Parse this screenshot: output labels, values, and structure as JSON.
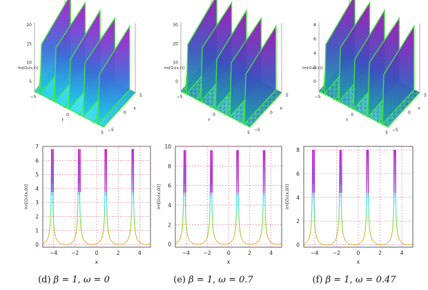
{
  "figure": {
    "panels_3d": [
      {
        "z_label": "Im[O₃(x,t)]",
        "z_ticks": [
          "20",
          "15",
          "10",
          "5"
        ],
        "t_ticks": [
          "−5",
          "0",
          "5"
        ],
        "x_ticks": [
          "−5",
          "0",
          "5"
        ],
        "t_label": "t",
        "x_label": "x",
        "style": "smooth"
      },
      {
        "z_label": "Im[O₃(x,t)]",
        "z_ticks": [
          "30",
          "20",
          "10",
          "0"
        ],
        "t_ticks": [
          "−5",
          "0",
          "5"
        ],
        "x_ticks": [
          "−5",
          "0",
          "5"
        ],
        "t_label": "t",
        "x_label": "x",
        "style": "noisy"
      },
      {
        "z_label": "Im[O₃(x,t)]",
        "z_ticks": [
          "8",
          "6",
          "4",
          "2",
          "0"
        ],
        "t_ticks": [
          "−5",
          "0",
          "5"
        ],
        "x_ticks": [
          "−5",
          "0",
          "5"
        ],
        "t_label": "t",
        "x_label": "x",
        "style": "noisy"
      }
    ],
    "captions": [
      {
        "tag": "(d)",
        "beta": "β = 1,",
        "omega": "ω = 0"
      },
      {
        "tag": "(e)",
        "beta": "β = 1,",
        "omega": "ω = 0.7"
      },
      {
        "tag": "(f)",
        "beta": "β = 1,",
        "omega": "ω = 0.47"
      }
    ]
  },
  "chart_data": [
    {
      "type": "line",
      "title": "(d) β = 1, ω = 0",
      "xlabel": "x",
      "ylabel": "Im[O₃(x,0)]",
      "xlim": [
        -5,
        5
      ],
      "ylim": [
        -0.2,
        7
      ],
      "x_ticks": [
        -4,
        -2,
        0,
        2,
        4
      ],
      "y_ticks": [
        0,
        1,
        2,
        3,
        4,
        5,
        6,
        7
      ],
      "grid": true,
      "peak_centers": [
        -4.1,
        -1.6,
        0.85,
        3.35
      ],
      "peak_height": 6.8,
      "curve": "y = min(6.8, 0.38 / |sin(pi * (x - 0.85) / 2.5)| - 0.38)"
    },
    {
      "type": "line",
      "title": "(e) β = 1, ω = 0.7",
      "xlabel": "x",
      "ylabel": "Im[O₃(x,0)]",
      "xlim": [
        -5,
        5
      ],
      "ylim": [
        -0.3,
        10
      ],
      "x_ticks": [
        -4,
        -2,
        0,
        2,
        4
      ],
      "y_ticks": [
        0,
        2,
        4,
        6,
        8,
        10
      ],
      "grid": true,
      "peak_centers": [
        -4.1,
        -1.6,
        0.85,
        3.35
      ],
      "peak_height": 9.6,
      "curve": "y = min(9.6, 0.54 / |sin(pi * (x - 0.85) / 2.5)| - 0.54)"
    },
    {
      "type": "line",
      "title": "(f) β = 1, ω = 0.47",
      "xlabel": "x",
      "ylabel": "Im[O₃(x,0)]",
      "xlim": [
        -5,
        5
      ],
      "ylim": [
        -0.2,
        8.3
      ],
      "x_ticks": [
        -4,
        -2,
        0,
        2,
        4
      ],
      "y_ticks": [
        0,
        2,
        4,
        6,
        8
      ],
      "grid": true,
      "peak_centers": [
        -4.1,
        -1.6,
        0.85,
        3.35
      ],
      "peak_height": 8.0,
      "curve": "y = min(8.0, 0.45 / |sin(pi * (x - 0.85) / 2.5)| - 0.45)"
    }
  ]
}
